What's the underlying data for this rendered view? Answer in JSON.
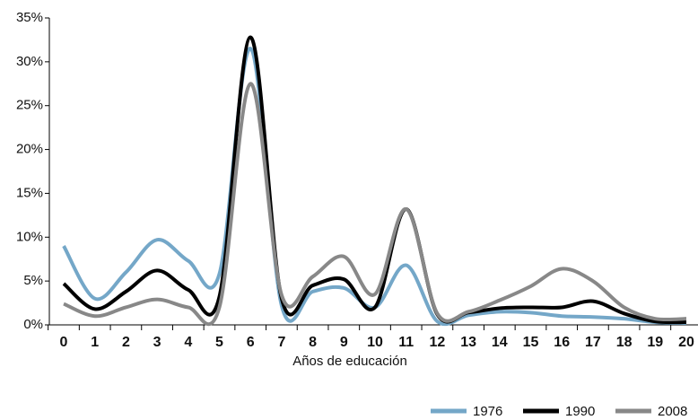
{
  "chart_data": {
    "type": "line",
    "x_label": "Años de educación",
    "categories": [
      "0",
      "1",
      "2",
      "3",
      "4",
      "5",
      "6",
      "7",
      "8",
      "9",
      "10",
      "11",
      "12",
      "13",
      "14",
      "15",
      "16",
      "17",
      "18",
      "19",
      "20"
    ],
    "ylim": [
      0,
      35
    ],
    "yticks": [
      {
        "value": 0,
        "label": "0%"
      },
      {
        "value": 5,
        "label": "5%"
      },
      {
        "value": 10,
        "label": "10%"
      },
      {
        "value": 15,
        "label": "15%"
      },
      {
        "value": 20,
        "label": "20%"
      },
      {
        "value": 25,
        "label": "25%"
      },
      {
        "value": 30,
        "label": "30%"
      },
      {
        "value": 35,
        "label": "35%"
      }
    ],
    "legend": "bottom-right",
    "series": [
      {
        "name": "1976",
        "color": "#74a7c8",
        "values": [
          9,
          3,
          6,
          9.7,
          7.3,
          5.8,
          31.5,
          2.2,
          3.8,
          4.2,
          2,
          6.8,
          0.4,
          1.1,
          1.5,
          1.4,
          1,
          0.9,
          0.7,
          0.3,
          0.2
        ]
      },
      {
        "name": "1990",
        "color": "#000000",
        "values": [
          4.7,
          1.8,
          3.8,
          6.2,
          4,
          3.2,
          32.8,
          3,
          4.5,
          5.2,
          2,
          13.2,
          1.2,
          1.4,
          1.9,
          2,
          2,
          2.7,
          1.3,
          0.4,
          0.3
        ]
      },
      {
        "name": "2008",
        "color": "#888888",
        "values": [
          2.4,
          1,
          2,
          2.9,
          2,
          2,
          27.5,
          3.4,
          5.5,
          7.8,
          3.5,
          13.2,
          1.3,
          1.5,
          2.8,
          4.4,
          6.4,
          5,
          2,
          0.7,
          0.7
        ]
      }
    ]
  }
}
